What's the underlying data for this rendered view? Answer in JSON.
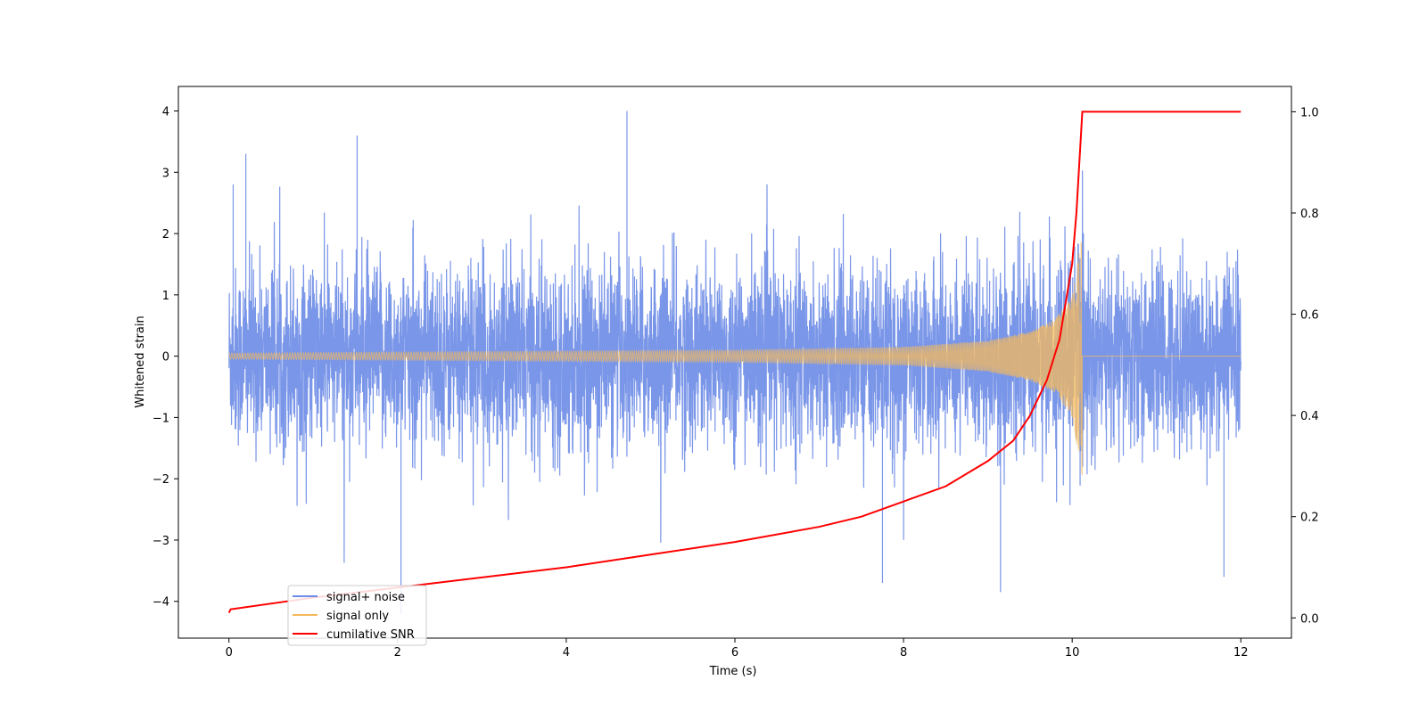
{
  "chart_data": {
    "type": "line",
    "xlabel": "Time (s)",
    "ylabel": "Whitened strain",
    "xlim": [
      -0.6,
      12.6
    ],
    "ylim": [
      -4.6,
      4.4
    ],
    "ylim_right": [
      -0.04,
      1.05
    ],
    "x_ticks": [
      0,
      2,
      4,
      6,
      8,
      10,
      12
    ],
    "y_ticks": [
      -4,
      -3,
      -2,
      -1,
      0,
      1,
      2,
      3,
      4
    ],
    "y_right_ticks": [
      0.0,
      0.2,
      0.4,
      0.6,
      0.8,
      1.0
    ],
    "x_tick_labels": [
      "0",
      "2",
      "4",
      "6",
      "8",
      "10",
      "12"
    ],
    "y_tick_labels": [
      "−4",
      "−3",
      "−2",
      "−1",
      "0",
      "1",
      "2",
      "3",
      "4"
    ],
    "y_right_tick_labels": [
      "0.0",
      "0.2",
      "0.4",
      "0.6",
      "0.8",
      "1.0"
    ],
    "grid": false,
    "legend_position": "lower-left",
    "merger_time": 10.12,
    "series": [
      {
        "name": "signal+ noise",
        "color": "#6b8be6",
        "axis": "left",
        "description_values": {
          "x_range": [
            0,
            12
          ],
          "typical_band": [
            -2.0,
            2.0
          ],
          "notable_peaks": [
            [
              0.05,
              2.8
            ],
            [
              0.2,
              3.3
            ],
            [
              1.52,
              3.6
            ],
            [
              4.72,
              4.0
            ],
            [
              2.04,
              -4.2
            ],
            [
              9.15,
              -3.85
            ],
            [
              7.75,
              -3.7
            ],
            [
              11.8,
              -3.6
            ]
          ]
        }
      },
      {
        "name": "signal only",
        "color": "#f5b95c",
        "axis": "left",
        "amplitude_points": [
          [
            0.0,
            0.05
          ],
          [
            6.0,
            0.1
          ],
          [
            8.0,
            0.15
          ],
          [
            9.0,
            0.25
          ],
          [
            9.5,
            0.4
          ],
          [
            9.8,
            0.6
          ],
          [
            10.0,
            1.0
          ],
          [
            10.12,
            2.0
          ],
          [
            10.13,
            0.0
          ],
          [
            12.0,
            0.0
          ]
        ]
      },
      {
        "name": "cumilative SNR",
        "color": "#ff0000",
        "axis": "right",
        "x": [
          0.0,
          0.02,
          1.0,
          2.0,
          3.0,
          4.0,
          5.0,
          6.0,
          7.0,
          7.5,
          8.0,
          8.5,
          9.0,
          9.3,
          9.5,
          9.7,
          9.85,
          10.0,
          10.05,
          10.12,
          10.2,
          12.0
        ],
        "values": [
          0.01,
          0.017,
          0.04,
          0.06,
          0.08,
          0.1,
          0.125,
          0.15,
          0.18,
          0.2,
          0.23,
          0.26,
          0.31,
          0.35,
          0.4,
          0.47,
          0.55,
          0.7,
          0.8,
          1.0,
          1.0,
          1.0
        ]
      }
    ]
  }
}
